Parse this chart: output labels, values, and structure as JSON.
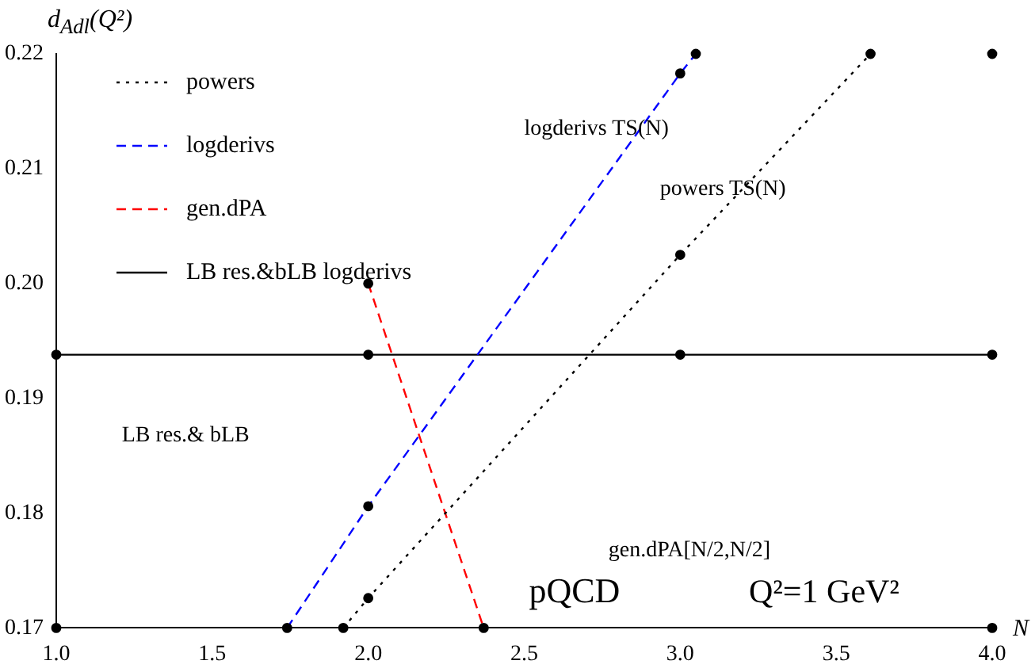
{
  "chart_data": {
    "type": "line",
    "xlabel": "N",
    "ylabel": "d$_{Adl}$(Q²)",
    "xlim": [
      1.0,
      4.0
    ],
    "ylim": [
      0.17,
      0.22
    ],
    "xticks": [
      {
        "value": 1,
        "label": "1.0"
      },
      {
        "value": 1.5,
        "label": "1.5"
      },
      {
        "value": 2,
        "label": "2.0"
      },
      {
        "value": 2.5,
        "label": "2.5"
      },
      {
        "value": 3,
        "label": "3.0"
      },
      {
        "value": 3.5,
        "label": "3.5"
      },
      {
        "value": 4,
        "label": "4.0"
      }
    ],
    "yticks": [
      {
        "value": 0.17,
        "label": "0.17"
      },
      {
        "value": 0.18,
        "label": "0.18"
      },
      {
        "value": 0.19,
        "label": "0.19"
      },
      {
        "value": 0.2,
        "label": "0.20"
      },
      {
        "value": 0.21,
        "label": "0.21"
      },
      {
        "value": 0.22,
        "label": "0.22"
      }
    ],
    "grid": false,
    "legend": "top left",
    "marker": "circle",
    "series": [
      {
        "name": "powers",
        "color": "#000000",
        "line_style": "dotted",
        "x": [
          1.92,
          2.0,
          3.0,
          3.61
        ],
        "values": [
          0.17,
          0.1726,
          0.2025,
          0.22
        ]
      },
      {
        "name": "logderivs",
        "color": "#0000ff",
        "line_style": "dashed",
        "x": [
          1.74,
          2.0,
          3.0,
          3.05
        ],
        "values": [
          0.17,
          0.1806,
          0.2183,
          0.22
        ]
      },
      {
        "name": "gen.dPA",
        "color": "#ff0000",
        "line_style": "dashed",
        "x": [
          2.0,
          2.37
        ],
        "values": [
          0.2,
          0.17
        ]
      },
      {
        "name": "LB res.&bLB logderivs",
        "color": "#000000",
        "line_style": "solid",
        "x": [
          1.0,
          2.0,
          3.0,
          4.0
        ],
        "values": [
          0.1938,
          0.1938,
          0.1938,
          0.1938
        ]
      },
      {
        "type": "scatter",
        "color": "#000000",
        "x": [
          1.0,
          4.0,
          4.0
        ],
        "values": [
          0.17,
          0.17,
          0.22
        ]
      }
    ],
    "annotations": [
      "logderivs TS(N)",
      "powers TS(N)",
      "LB res.& bLB",
      "gen.dPA[N/2,N/2]",
      "pQCD",
      "Q²=1 GeV²"
    ]
  }
}
